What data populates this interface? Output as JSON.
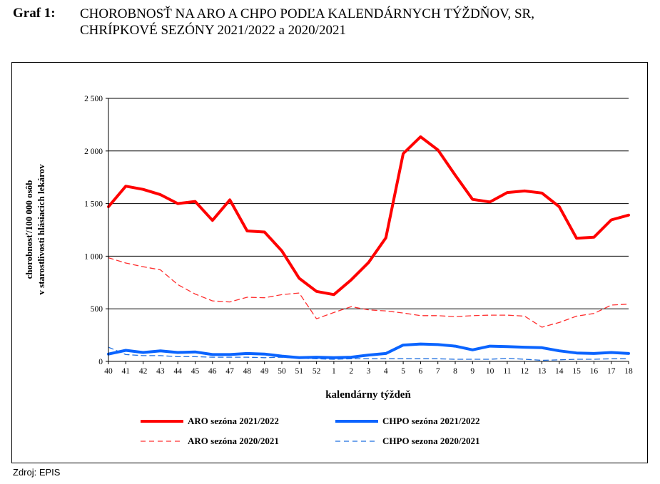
{
  "caption": {
    "label": "Graf 1:",
    "title_line1": "CHOROBNOSŤ NA ARO A CHPO PODĽA KALENDÁRNYCH TÝŽDŇOV, SR,",
    "title_line2": "CHRÍPKOVÉ SEZÓNY 2021/2022 a 2020/2021"
  },
  "source": "Zdroj: EPIS",
  "chart_data": {
    "type": "line",
    "xlabel": "kalendárny týždeň",
    "ylabel_line1": "chorobnosť/100 000 osôb",
    "ylabel_line2": "v starostlivosti hlásiacich lekárov",
    "ylim": [
      0,
      2500
    ],
    "yticks": [
      0,
      500,
      1000,
      1500,
      2000,
      2500
    ],
    "ytick_labels": [
      "0",
      "500",
      "1 000",
      "1 500",
      "2 000",
      "2 500"
    ],
    "categories": [
      "40",
      "41",
      "42",
      "43",
      "44",
      "45",
      "46",
      "47",
      "48",
      "49",
      "50",
      "51",
      "52",
      "1",
      "2",
      "3",
      "4",
      "5",
      "6",
      "7",
      "8",
      "9",
      "10",
      "11",
      "12",
      "13",
      "14",
      "15",
      "16",
      "17",
      "18"
    ],
    "grid": true,
    "legend_position": "bottom",
    "series": [
      {
        "name": "ARO sezóna 2021/2022",
        "color": "#ff0000",
        "style": "solid",
        "values": [
          1470,
          1665,
          1635,
          1585,
          1500,
          1520,
          1340,
          1535,
          1240,
          1230,
          1050,
          790,
          665,
          635,
          775,
          940,
          1175,
          1975,
          2135,
          2010,
          1770,
          1540,
          1515,
          1605,
          1620,
          1600,
          1470,
          1170,
          1180,
          1345,
          1390
        ]
      },
      {
        "name": "CHPO sezóna 2021/2022",
        "color": "#0a64ff",
        "style": "solid",
        "values": [
          70,
          105,
          85,
          100,
          85,
          90,
          65,
          65,
          75,
          70,
          50,
          35,
          40,
          35,
          40,
          60,
          75,
          155,
          165,
          160,
          145,
          110,
          145,
          140,
          135,
          130,
          100,
          80,
          75,
          85,
          75
        ]
      },
      {
        "name": "ARO sezóna 2020/2021",
        "color": "#ff3030",
        "style": "dashed",
        "values": [
          985,
          935,
          900,
          870,
          730,
          640,
          575,
          565,
          610,
          605,
          635,
          650,
          405,
          465,
          520,
          490,
          480,
          460,
          435,
          435,
          425,
          435,
          440,
          440,
          430,
          325,
          370,
          430,
          455,
          535,
          545
        ]
      },
      {
        "name": "CHPO sezona 2020/2021",
        "color": "#1f6fe0",
        "style": "dashed",
        "values": [
          135,
          65,
          55,
          55,
          45,
          45,
          40,
          40,
          40,
          35,
          40,
          30,
          25,
          20,
          25,
          25,
          25,
          25,
          25,
          25,
          20,
          20,
          20,
          30,
          20,
          10,
          15,
          20,
          20,
          25,
          25
        ]
      }
    ]
  }
}
